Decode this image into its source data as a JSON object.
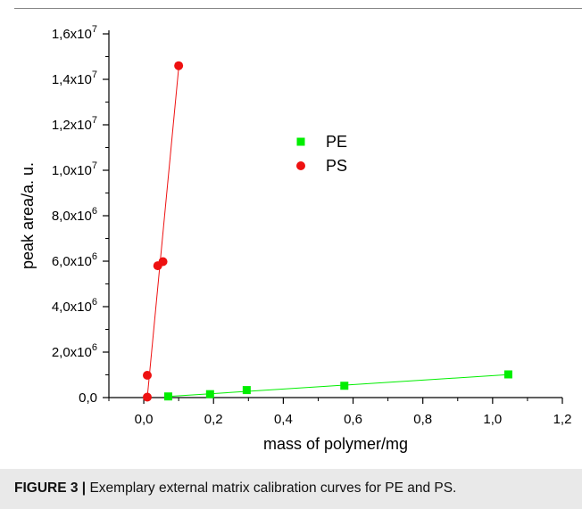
{
  "chart_data": {
    "type": "scatter",
    "xlabel": "mass of polymer/mg",
    "ylabel": "peak area/a. u.",
    "xlim": [
      -0.1,
      1.2
    ],
    "ylim": [
      0,
      16000000
    ],
    "x_ticks": [
      {
        "value": 0.0,
        "label": "0,0"
      },
      {
        "value": 0.2,
        "label": "0,2"
      },
      {
        "value": 0.4,
        "label": "0,4"
      },
      {
        "value": 0.6,
        "label": "0,6"
      },
      {
        "value": 0.8,
        "label": "0,8"
      },
      {
        "value": 1.0,
        "label": "1,0"
      },
      {
        "value": 1.2,
        "label": "1,2"
      }
    ],
    "y_ticks": [
      {
        "value": 0,
        "base": "0,0",
        "exp": ""
      },
      {
        "value": 2000000,
        "base": "2,0x10",
        "exp": "6"
      },
      {
        "value": 4000000,
        "base": "4,0x10",
        "exp": "6"
      },
      {
        "value": 6000000,
        "base": "6,0x10",
        "exp": "6"
      },
      {
        "value": 8000000,
        "base": "8,0x10",
        "exp": "6"
      },
      {
        "value": 10000000,
        "base": "1,0x10",
        "exp": "7"
      },
      {
        "value": 12000000,
        "base": "1,2x10",
        "exp": "7"
      },
      {
        "value": 14000000,
        "base": "1,4x10",
        "exp": "7"
      },
      {
        "value": 16000000,
        "base": "1,6x10",
        "exp": "7"
      }
    ],
    "legend_position": "center",
    "series": [
      {
        "name": "PE",
        "color": "#00ee00",
        "marker": "square",
        "points": [
          {
            "x": 0.07,
            "y": 50000
          },
          {
            "x": 0.19,
            "y": 150000
          },
          {
            "x": 0.295,
            "y": 330000
          },
          {
            "x": 0.575,
            "y": 520000
          },
          {
            "x": 1.045,
            "y": 1020000
          }
        ],
        "fit": {
          "x": [
            0.07,
            1.045
          ],
          "y": [
            50000,
            1010000
          ]
        }
      },
      {
        "name": "PS",
        "color": "#ee1111",
        "marker": "circle",
        "points": [
          {
            "x": 0.01,
            "y": 20000
          },
          {
            "x": 0.01,
            "y": 980000
          },
          {
            "x": 0.04,
            "y": 5800000
          },
          {
            "x": 0.055,
            "y": 5980000
          },
          {
            "x": 0.1,
            "y": 14600000
          }
        ],
        "fit": {
          "x": [
            0.01,
            0.1
          ],
          "y": [
            0,
            14500000
          ]
        }
      }
    ]
  },
  "caption": {
    "label": "FIGURE 3 |",
    "text": " Exemplary external matrix calibration curves for PE and PS."
  }
}
